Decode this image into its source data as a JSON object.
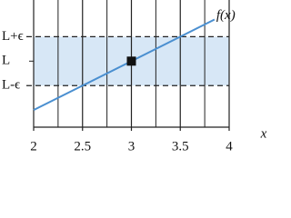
{
  "chart_data": {
    "type": "line",
    "x": [
      2,
      3.85
    ],
    "series": [
      {
        "name": "f(x)",
        "color": "#4a8fd0",
        "values": [
          -2,
          1.7
        ]
      }
    ],
    "marker": {
      "x": 3,
      "y": 0
    },
    "xlim": [
      2,
      4
    ],
    "xticks": [
      2,
      2.5,
      3,
      3.5,
      4
    ],
    "xminorticks": [
      2.25,
      2.75,
      3.25,
      3.75
    ],
    "ylim": [
      -2.7,
      2.5
    ],
    "yticks": [
      {
        "value": -1,
        "label": "L-ϵ"
      },
      {
        "value": 0,
        "label": "L"
      },
      {
        "value": 1,
        "label": "L+ϵ"
      }
    ],
    "xlabel": "x",
    "band_color": "#d7e7f6",
    "grid": true
  }
}
